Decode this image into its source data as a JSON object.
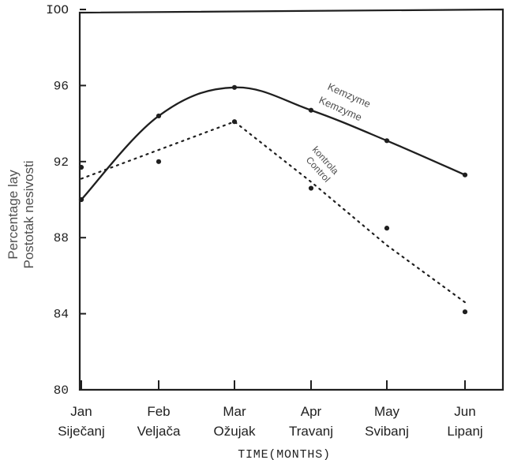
{
  "chart_data": {
    "type": "line",
    "xlabel": "TIME(MONTHS)",
    "ylabel": [
      "Percentage lay",
      "Postotak nesivosti"
    ],
    "ylim": [
      80,
      100
    ],
    "yticks": [
      "80",
      "84",
      "88",
      "92",
      "96",
      "IOO"
    ],
    "categories": [
      [
        "Jan",
        "Siječanj"
      ],
      [
        "Feb",
        "Veljača"
      ],
      [
        "Mar",
        "Ožujak"
      ],
      [
        "Apr",
        "Travanj"
      ],
      [
        "May",
        "Svibanj"
      ],
      [
        "Jun",
        "Lipanj"
      ]
    ],
    "series": [
      {
        "name": [
          "Kemzyme",
          "Kemzyme"
        ],
        "style": "solid",
        "values": [
          90.0,
          94.4,
          95.9,
          94.7,
          93.1,
          91.3
        ]
      },
      {
        "name": [
          "kontrola",
          "Control"
        ],
        "style": "dotted",
        "values": [
          91.7,
          92.0,
          94.1,
          90.6,
          88.5,
          84.1
        ]
      }
    ],
    "grid": false,
    "legend": "inline labels"
  },
  "colors": {
    "ink": "#1f1f1f",
    "label_gray": "#4f4f4f",
    "background": "#ffffff"
  }
}
